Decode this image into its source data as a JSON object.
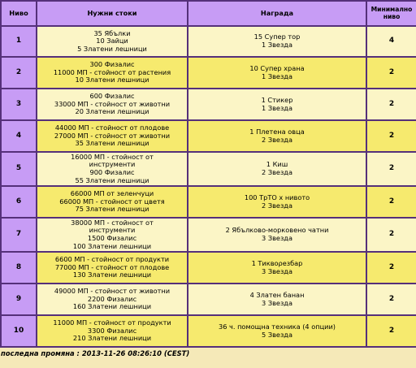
{
  "headers": {
    "num": "Ниво",
    "req": "Нужни стоки",
    "rew": "Награда",
    "min": [
      "Минимално",
      "ниво"
    ]
  },
  "rows": [
    {
      "num": "1",
      "req": [
        "35 Ябълки",
        "10 Зайци",
        "5 Златени лешници"
      ],
      "rew": [
        "15 Супер тор",
        "1 Звезда"
      ],
      "min": "4"
    },
    {
      "num": "2",
      "req": [
        "300 Физалис",
        "11000 МП - стойност от растения",
        "10 Златени лешници"
      ],
      "rew": [
        "10 Супер храна",
        "1 Звезда"
      ],
      "min": "2"
    },
    {
      "num": "3",
      "req": [
        "600 Физалис",
        "33000 МП - стойност от животни",
        "20 Златени лешници"
      ],
      "rew": [
        "1 Стикер",
        "1 Звезда"
      ],
      "min": "2"
    },
    {
      "num": "4",
      "req": [
        "44000 МП - стойност от плодове",
        "27000 МП - стойност от животни",
        "35 Златени лешници"
      ],
      "rew": [
        "1 Плетена овца",
        "2 Звезда"
      ],
      "min": "2"
    },
    {
      "num": "5",
      "req": [
        "16000 МП - стойност от",
        "инструменти",
        "900 Физалис",
        "55 Златени лешници"
      ],
      "rew": [
        "1 Киш",
        "2 Звезда"
      ],
      "min": "2"
    },
    {
      "num": "6",
      "req": [
        "66000 МП от зеленчуци",
        "66000 МП - стойност от цветя",
        "75 Златени лешници"
      ],
      "rew": [
        "100 ТрТО x нивото",
        "2 Звезда"
      ],
      "min": "2"
    },
    {
      "num": "7",
      "req": [
        "38000 МП - стойност от",
        "инструменти",
        "1500 Физалис",
        "100 Златени лешници"
      ],
      "rew": [
        "2 Ябълково-морковено чатни",
        "3 Звезда"
      ],
      "min": "2"
    },
    {
      "num": "8",
      "req": [
        "6600 МП - стойност от продукти",
        "77000 МП - стойност от плодове",
        "130 Златени лешници"
      ],
      "rew": [
        "1 Тиквορезбар",
        "3 Звезда"
      ],
      "min": "2"
    },
    {
      "num": "9",
      "req": [
        "49000 МП - стойност от животни",
        "2200 Физалис",
        "160 Златени лешници"
      ],
      "rew": [
        "4 Златен банан",
        "3 Звезда"
      ],
      "min": "2"
    },
    {
      "num": "10",
      "req": [
        "11000 МП - стойност от продукти",
        "3300 Физалис",
        "210 Златени лешници"
      ],
      "rew": [
        "36 ч. помощна техника (4 опции)",
        "5 Звезда"
      ],
      "min": "2"
    }
  ],
  "footer": "последна промяна : 2013-11-26 08:26:10 (CEST)",
  "colors": {
    "header_bg": "#c79cf5",
    "row_light": "#fbf5c6",
    "row_dark": "#f6ea6e",
    "border": "#55307a",
    "page_bg": "#f5e9b8"
  }
}
